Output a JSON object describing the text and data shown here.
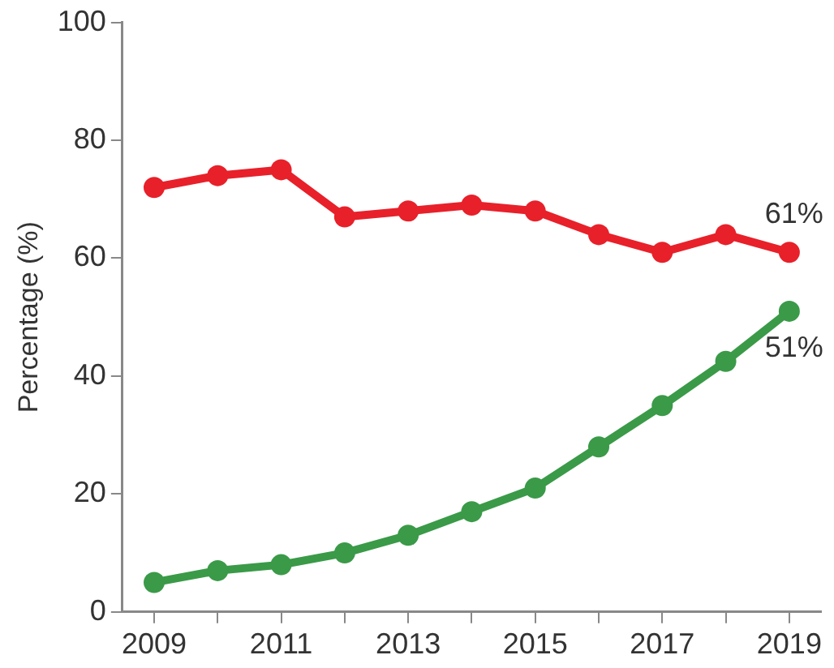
{
  "chart_data": {
    "type": "line",
    "ylabel": "Percentage (%)",
    "x": [
      2009,
      2010,
      2011,
      2012,
      2013,
      2014,
      2015,
      2016,
      2017,
      2018,
      2019
    ],
    "xlim": [
      2008.5,
      2019.5
    ],
    "xticks": [
      2009,
      {
        "value": 2010,
        "label": null
      },
      2011,
      {
        "value": 2012,
        "label": null
      },
      2013,
      {
        "value": 2014,
        "label": null
      },
      2015,
      {
        "value": 2016,
        "label": null
      },
      2017,
      {
        "value": 2018,
        "label": null
      },
      2019
    ],
    "ylim": [
      0,
      100
    ],
    "yticks": [
      0,
      20,
      40,
      60,
      80,
      100
    ],
    "series": [
      {
        "color": "#e8202a",
        "values": [
          72,
          74,
          75,
          67,
          68,
          69,
          68,
          64,
          61,
          64,
          61
        ]
      },
      {
        "color": "#3a9a48",
        "values": [
          5,
          7,
          8,
          10,
          13,
          17,
          21,
          28,
          35,
          42.5,
          51
        ]
      }
    ],
    "annotations": [
      {
        "text": "61%",
        "x": 2019,
        "y": 61
      },
      {
        "text": "51%",
        "x": 2019,
        "y": 51
      }
    ],
    "grid": false,
    "legend": false,
    "marker": "circle",
    "line_style": "solid"
  }
}
